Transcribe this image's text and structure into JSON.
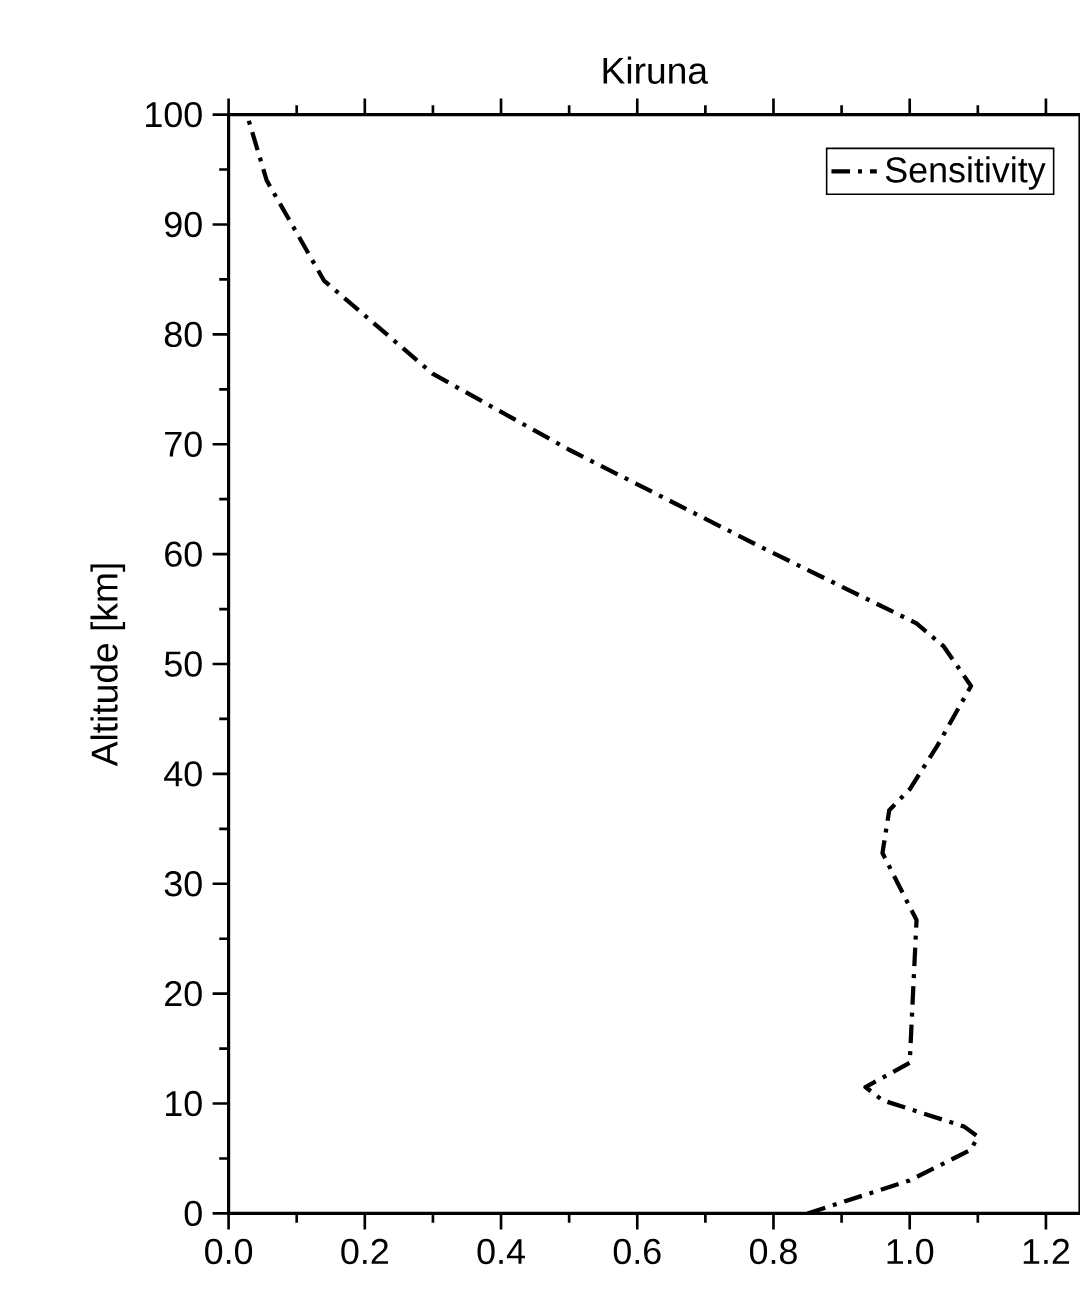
{
  "chart_data": {
    "type": "line",
    "title": "Kiruna",
    "ylabel": "Altitude [km]",
    "series": [
      {
        "name": "Sensitivity",
        "color": "#000000",
        "line_style": "dashdot",
        "x": [
          0.85,
          1.0,
          1.09,
          1.1,
          1.08,
          0.96,
          0.935,
          1.0,
          1.01,
          1.0,
          0.96,
          0.97,
          1.0,
          1.04,
          1.09,
          1.05,
          1.01,
          0.78,
          0.5,
          0.3,
          0.14,
          0.056,
          0.027
        ],
        "values": [
          0,
          3,
          5.8,
          7,
          7.9,
          10.3,
          11.5,
          13.7,
          26.7,
          27.9,
          32.8,
          36.7,
          38.6,
          42.5,
          48,
          51.6,
          53.7,
          60.7,
          69.5,
          76.4,
          84.9,
          94,
          100
        ]
      }
    ],
    "xlim": [
      0,
      1.25
    ],
    "ylim": [
      0,
      100
    ],
    "xticks": [
      {
        "value": 0,
        "label": "0.0"
      },
      0.2,
      0.4,
      0.6,
      0.8,
      {
        "value": 1,
        "label": "1.0"
      },
      1.2
    ],
    "yticks": [
      0,
      10,
      20,
      30,
      40,
      50,
      60,
      70,
      80,
      90,
      100
    ],
    "legend": "top right",
    "grid": false
  }
}
